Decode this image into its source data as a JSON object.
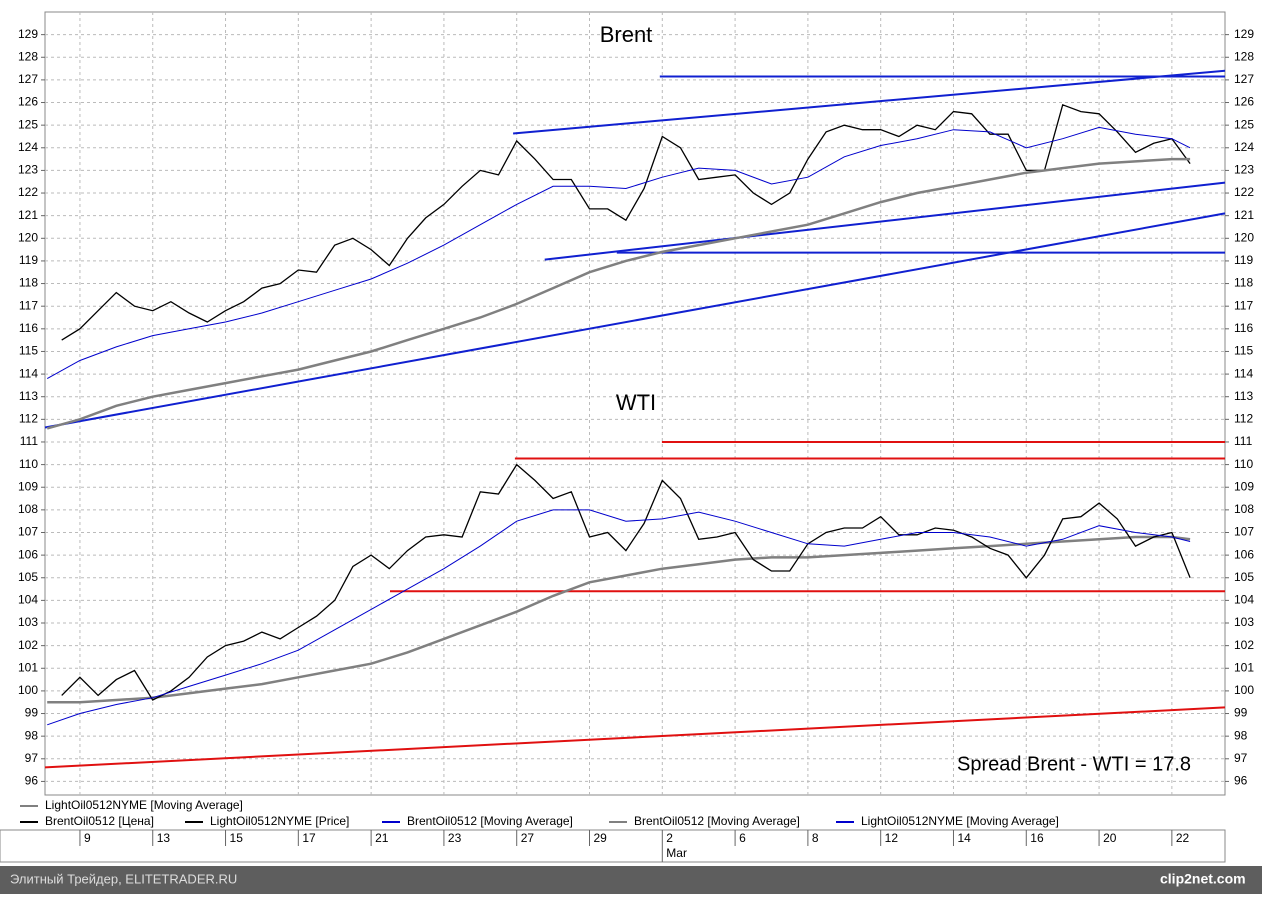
{
  "chart_data": {
    "type": "line",
    "annotations": [
      "Brent",
      "WTI",
      "Spread Brent - WTI = 17.8"
    ],
    "xlim": [
      -0.96,
      31.46
    ],
    "ylim": [
      95.4,
      130
    ],
    "xticks": [
      {
        "value": 0,
        "label": "9"
      },
      {
        "value": 2,
        "label": "13"
      },
      {
        "value": 4,
        "label": "15"
      },
      {
        "value": 6,
        "label": "17"
      },
      {
        "value": 8,
        "label": "21"
      },
      {
        "value": 10,
        "label": "23"
      },
      {
        "value": 12,
        "label": "27"
      },
      {
        "value": 14,
        "label": "29"
      },
      {
        "value": 16,
        "label": "2"
      },
      {
        "value": 18,
        "label": "6"
      },
      {
        "value": 20,
        "label": "8"
      },
      {
        "value": 22,
        "label": "12"
      },
      {
        "value": 24,
        "label": "14"
      },
      {
        "value": 26,
        "label": "16"
      },
      {
        "value": 28,
        "label": "20"
      },
      {
        "value": 30,
        "label": "22"
      }
    ],
    "month_labels": [
      {
        "value": 16,
        "label": "Mar"
      }
    ],
    "yticks": [
      96,
      97,
      98,
      99,
      100,
      101,
      102,
      103,
      104,
      105,
      106,
      107,
      108,
      109,
      110,
      111,
      112,
      113,
      114,
      115,
      116,
      117,
      118,
      119,
      120,
      121,
      122,
      123,
      124,
      125,
      126,
      127,
      128,
      129
    ],
    "grid": true,
    "series": [
      {
        "name": "LightOil0512NYME [Moving Average]",
        "color": "#808080",
        "x": [
          -0.9,
          0,
          1,
          2,
          3,
          4,
          5,
          6,
          7,
          8,
          9,
          10,
          11,
          12,
          13,
          14,
          15,
          16,
          17,
          18,
          19,
          20,
          21,
          22,
          23,
          24,
          25,
          26,
          27,
          28,
          29,
          30,
          30.5
        ],
        "values": [
          99.5,
          99.5,
          99.6,
          99.7,
          99.9,
          100.1,
          100.3,
          100.6,
          100.9,
          101.2,
          101.7,
          102.3,
          102.9,
          103.5,
          104.2,
          104.8,
          105.1,
          105.4,
          105.6,
          105.8,
          105.9,
          105.9,
          106.0,
          106.1,
          106.2,
          106.3,
          106.4,
          106.5,
          106.6,
          106.7,
          106.8,
          106.8,
          106.7
        ]
      },
      {
        "name": "BrentOil0512 [Цена]",
        "color": "#000000",
        "x": [
          -0.5,
          0,
          0.5,
          1,
          1.5,
          2,
          2.5,
          3,
          3.5,
          4,
          4.5,
          5,
          5.5,
          6,
          6.5,
          7,
          7.5,
          8,
          8.5,
          9,
          9.5,
          10,
          10.5,
          11,
          11.5,
          12,
          12.5,
          13,
          13.5,
          14,
          14.5,
          15,
          15.5,
          16,
          16.5,
          17,
          17.5,
          18,
          18.5,
          19,
          19.5,
          20,
          20.5,
          21,
          21.5,
          22,
          22.5,
          23,
          23.5,
          24,
          24.5,
          25,
          25.5,
          26,
          26.5,
          27,
          27.5,
          28,
          28.5,
          29,
          29.5,
          30,
          30.5
        ],
        "values": [
          115.5,
          116.0,
          116.8,
          117.6,
          117.0,
          116.8,
          117.2,
          116.7,
          116.3,
          116.8,
          117.2,
          117.8,
          118.0,
          118.6,
          118.5,
          119.7,
          120.0,
          119.5,
          118.8,
          120.0,
          120.9,
          121.5,
          122.3,
          123.0,
          122.8,
          124.3,
          123.5,
          122.6,
          122.6,
          121.3,
          121.3,
          120.8,
          122.2,
          124.5,
          124.0,
          122.6,
          122.7,
          122.8,
          122.0,
          121.5,
          122.0,
          123.5,
          124.7,
          125.0,
          124.8,
          124.8,
          124.5,
          125.0,
          124.8,
          125.6,
          125.5,
          124.6,
          124.6,
          123.0,
          123.0,
          125.9,
          125.6,
          125.5,
          124.7,
          123.8,
          124.2,
          124.4,
          123.3
        ]
      },
      {
        "name": "LightOil0512NYME [Price]",
        "color": "#000000",
        "x": [
          -0.5,
          0,
          0.5,
          1,
          1.5,
          2,
          2.5,
          3,
          3.5,
          4,
          4.5,
          5,
          5.5,
          6,
          6.5,
          7,
          7.5,
          8,
          8.5,
          9,
          9.5,
          10,
          10.5,
          11,
          11.5,
          12,
          12.5,
          13,
          13.5,
          14,
          14.5,
          15,
          15.5,
          16,
          16.5,
          17,
          17.5,
          18,
          18.5,
          19,
          19.5,
          20,
          20.5,
          21,
          21.5,
          22,
          22.5,
          23,
          23.5,
          24,
          24.5,
          25,
          25.5,
          26,
          26.5,
          27,
          27.5,
          28,
          28.5,
          29,
          29.5,
          30,
          30.5
        ],
        "values": [
          99.8,
          100.6,
          99.8,
          100.5,
          100.9,
          99.6,
          100.0,
          100.6,
          101.5,
          102.0,
          102.2,
          102.6,
          102.3,
          102.8,
          103.3,
          104.0,
          105.5,
          106.0,
          105.4,
          106.2,
          106.8,
          106.9,
          106.8,
          108.8,
          108.7,
          110.0,
          109.3,
          108.5,
          108.8,
          106.8,
          107.0,
          106.2,
          107.4,
          109.3,
          108.5,
          106.7,
          106.8,
          107.0,
          105.8,
          105.3,
          105.3,
          106.5,
          107.0,
          107.2,
          107.2,
          107.7,
          106.9,
          106.9,
          107.2,
          107.1,
          106.8,
          106.3,
          106.0,
          105.0,
          106.0,
          107.6,
          107.7,
          108.3,
          107.6,
          106.4,
          106.8,
          107.0,
          105.0
        ]
      },
      {
        "name": "BrentOil0512 [Moving Average]",
        "color": "#0000cc",
        "x": [
          -0.9,
          0,
          1,
          2,
          3,
          4,
          5,
          6,
          7,
          8,
          9,
          10,
          11,
          12,
          13,
          14,
          15,
          16,
          17,
          18,
          19,
          20,
          21,
          22,
          23,
          24,
          25,
          26,
          27,
          28,
          29,
          30,
          30.5
        ],
        "values": [
          113.8,
          114.6,
          115.2,
          115.7,
          116.0,
          116.3,
          116.7,
          117.2,
          117.7,
          118.2,
          118.9,
          119.7,
          120.6,
          121.5,
          122.3,
          122.3,
          122.2,
          122.7,
          123.1,
          123.0,
          122.4,
          122.7,
          123.6,
          124.1,
          124.4,
          124.8,
          124.7,
          124.0,
          124.4,
          124.9,
          124.6,
          124.4,
          124.0
        ]
      },
      {
        "name": "BrentOil0512 [Moving Average]",
        "color": "#808080",
        "x": [
          -0.9,
          0,
          1,
          2,
          3,
          4,
          5,
          6,
          7,
          8,
          9,
          10,
          11,
          12,
          13,
          14,
          15,
          16,
          17,
          18,
          19,
          20,
          21,
          22,
          23,
          24,
          25,
          26,
          27,
          28,
          29,
          30,
          30.5
        ],
        "values": [
          111.6,
          112.0,
          112.6,
          113.0,
          113.3,
          113.6,
          113.9,
          114.2,
          114.6,
          115.0,
          115.5,
          116.0,
          116.5,
          117.1,
          117.8,
          118.5,
          119.0,
          119.4,
          119.7,
          120.0,
          120.3,
          120.6,
          121.1,
          121.6,
          122.0,
          122.3,
          122.6,
          122.9,
          123.1,
          123.3,
          123.4,
          123.5,
          123.5
        ]
      },
      {
        "name": "LightOil0512NYME [Moving Average]",
        "color": "#0000cc",
        "x": [
          -0.9,
          0,
          1,
          2,
          3,
          4,
          5,
          6,
          7,
          8,
          9,
          10,
          11,
          12,
          13,
          14,
          15,
          16,
          17,
          18,
          19,
          20,
          21,
          22,
          23,
          24,
          25,
          26,
          27,
          28,
          29,
          30,
          30.5
        ],
        "values": [
          98.5,
          99.0,
          99.4,
          99.7,
          100.2,
          100.7,
          101.2,
          101.8,
          102.7,
          103.6,
          104.5,
          105.4,
          106.4,
          107.5,
          108.0,
          108.0,
          107.5,
          107.6,
          107.9,
          107.5,
          107.0,
          106.5,
          106.4,
          106.7,
          107.0,
          107.0,
          106.8,
          106.4,
          106.7,
          107.3,
          107.0,
          106.8,
          106.6
        ]
      }
    ],
    "trendlines": [
      {
        "color": "#1020d0",
        "x": [
          11.9,
          31.46
        ],
        "values": [
          124.63,
          127.4
        ]
      },
      {
        "color": "#1020d0",
        "x": [
          15.93,
          31.46
        ],
        "values": [
          127.15,
          127.15
        ]
      },
      {
        "color": "#1020d0",
        "x": [
          12.77,
          31.46
        ],
        "values": [
          119.06,
          122.46
        ]
      },
      {
        "color": "#1020d0",
        "x": [
          14.75,
          31.46
        ],
        "values": [
          119.37,
          119.37
        ]
      },
      {
        "color": "#1020d0",
        "x": [
          -0.96,
          31.46
        ],
        "values": [
          111.64,
          121.1
        ]
      },
      {
        "color": "#e01010",
        "x": [
          15.99,
          31.46
        ],
        "values": [
          111.0,
          111.0
        ]
      },
      {
        "color": "#e01010",
        "x": [
          11.95,
          31.46
        ],
        "values": [
          110.27,
          110.27
        ]
      },
      {
        "color": "#e01010",
        "x": [
          8.52,
          31.46
        ],
        "values": [
          104.4,
          104.4
        ]
      },
      {
        "color": "#e01010",
        "x": [
          -0.96,
          31.46
        ],
        "values": [
          96.62,
          99.27
        ]
      }
    ]
  },
  "footer": {
    "source": "Элитный Трейдер, ELITETRADER.RU",
    "watermark": "clip2net.com"
  }
}
